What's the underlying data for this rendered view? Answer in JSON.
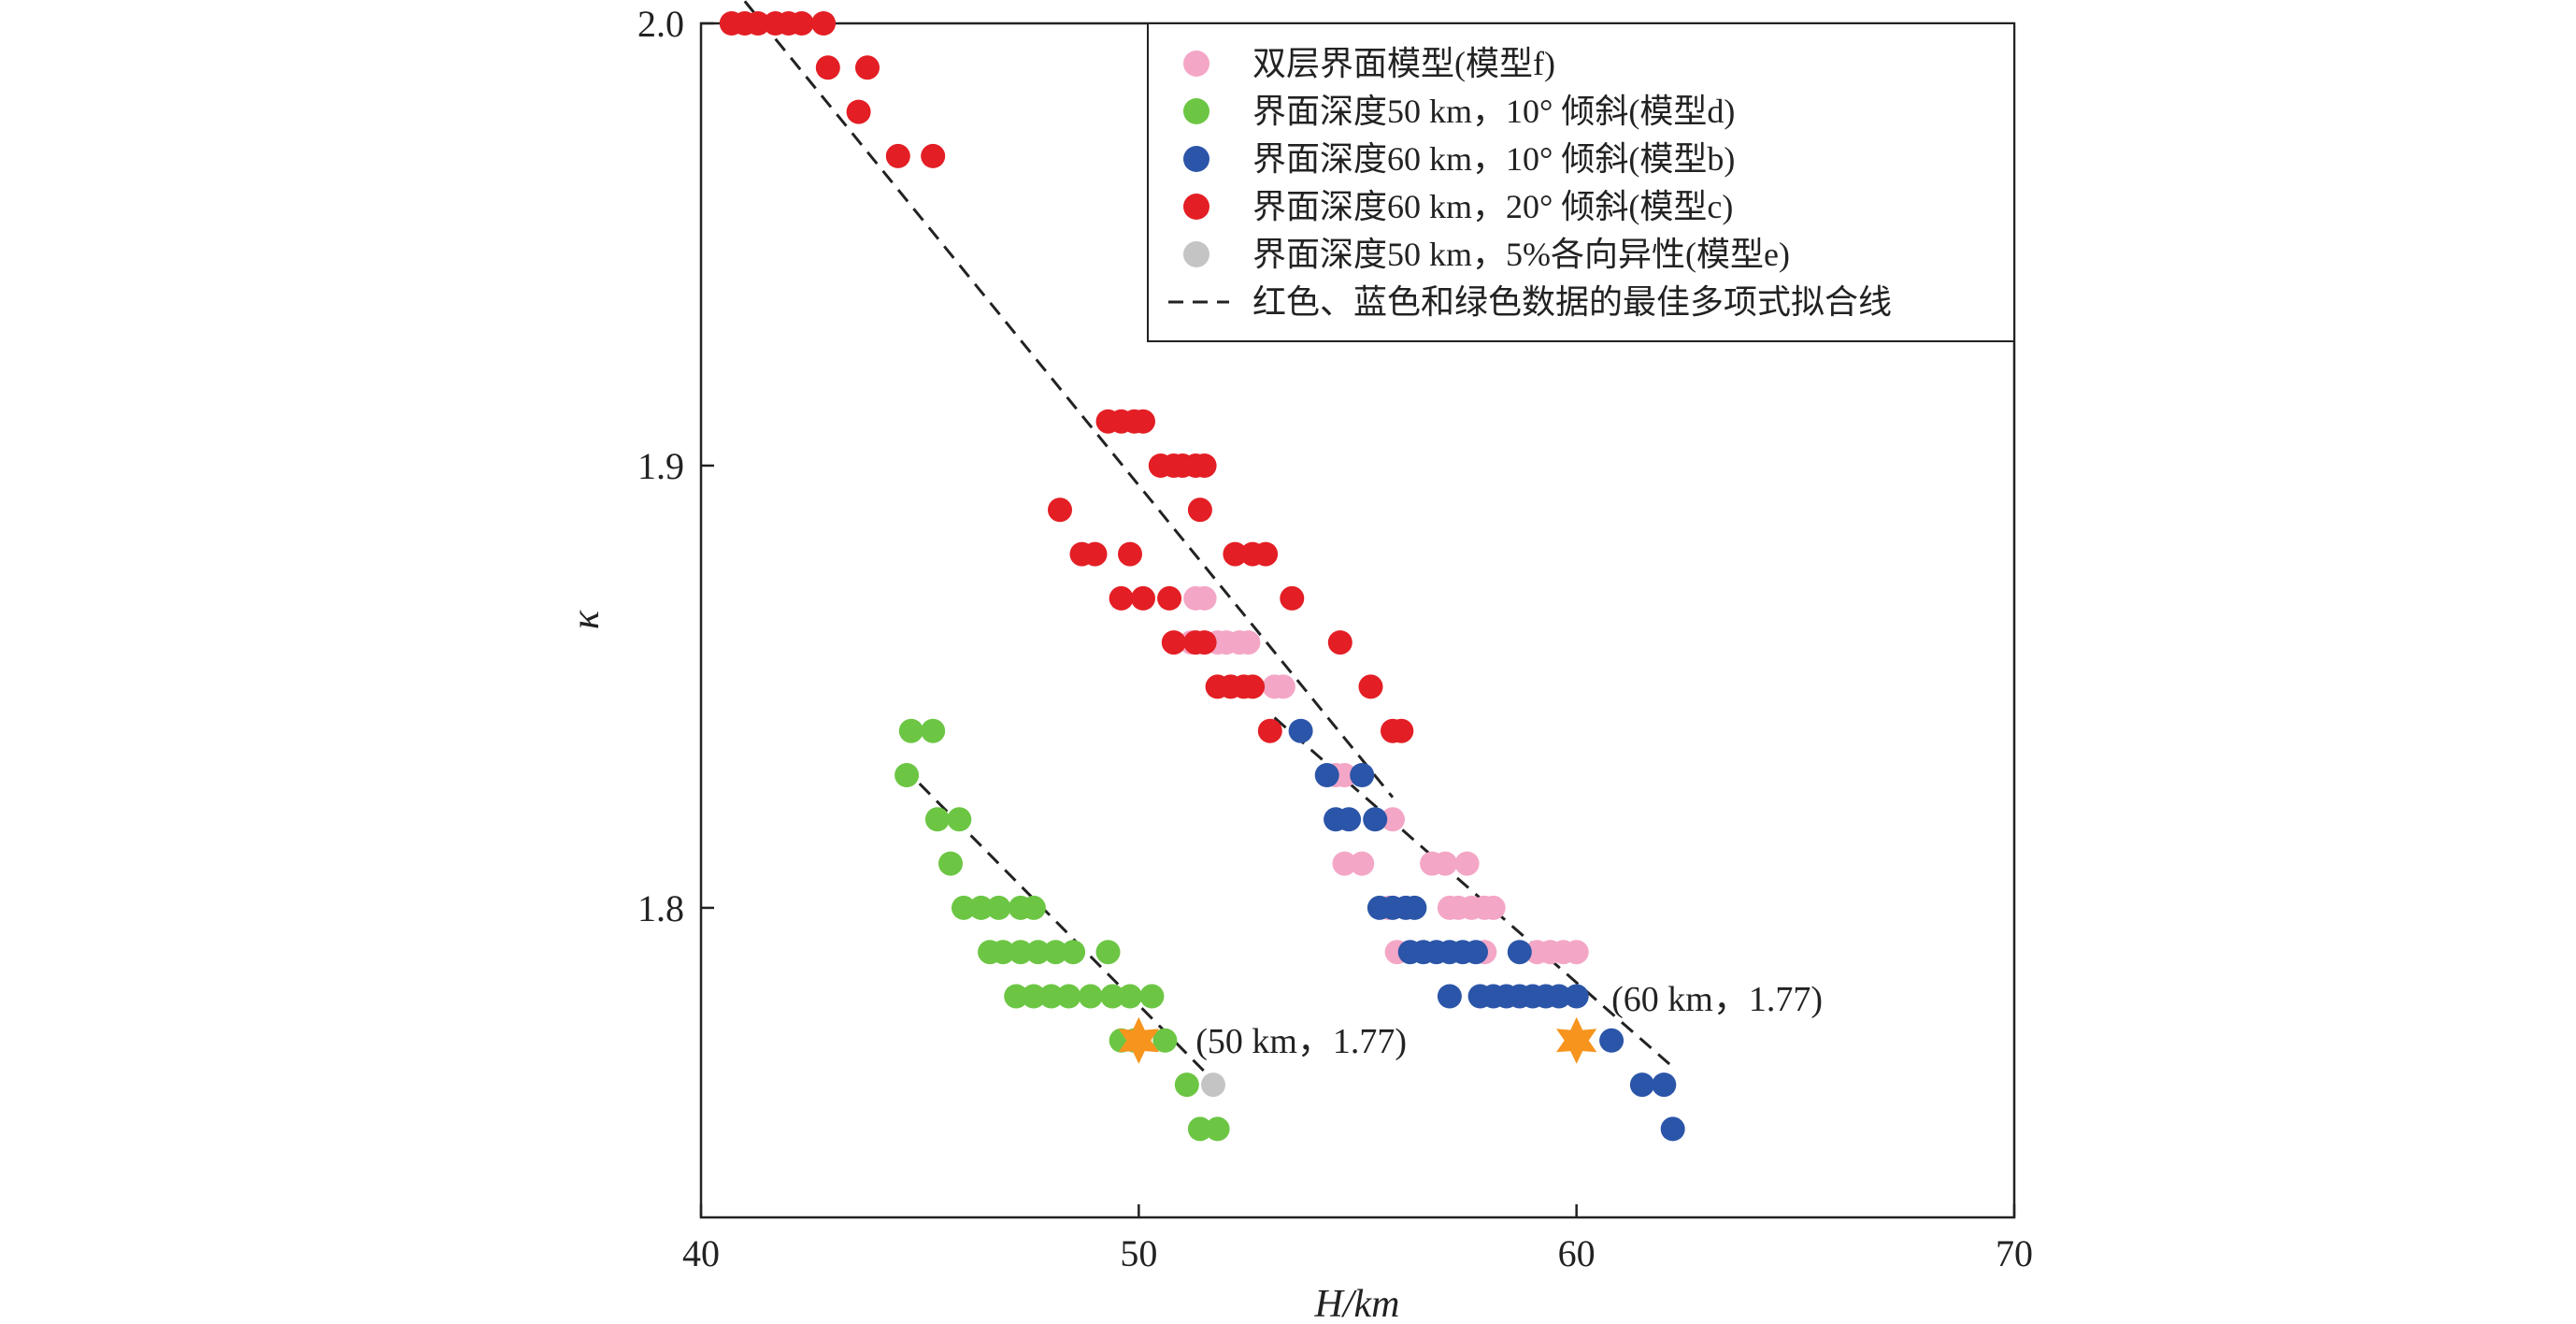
{
  "chart_data": {
    "type": "scatter",
    "xlabel": "H/km",
    "ylabel": "κ",
    "xlim": [
      40,
      70
    ],
    "ylim": [
      1.73,
      2.0
    ],
    "x_ticks": [
      "40",
      "50",
      "60",
      "70"
    ],
    "y_ticks": [
      "1.8",
      "1.9",
      "2.0"
    ],
    "legend_position": "top-right",
    "series": [
      {
        "name": "双层界面模型(模型f)",
        "color": "#f4a6c6",
        "points": [
          [
            51.3,
            1.87
          ],
          [
            51.5,
            1.87
          ],
          [
            51.2,
            1.86
          ],
          [
            51.8,
            1.86
          ],
          [
            52.0,
            1.86
          ],
          [
            52.3,
            1.86
          ],
          [
            52.5,
            1.86
          ],
          [
            53.1,
            1.85
          ],
          [
            53.3,
            1.85
          ],
          [
            54.5,
            1.83
          ],
          [
            54.7,
            1.83
          ],
          [
            55.8,
            1.82
          ],
          [
            54.7,
            1.81
          ],
          [
            55.1,
            1.81
          ],
          [
            56.7,
            1.81
          ],
          [
            57.0,
            1.81
          ],
          [
            57.5,
            1.81
          ],
          [
            55.7,
            1.8
          ],
          [
            57.1,
            1.8
          ],
          [
            57.3,
            1.8
          ],
          [
            57.6,
            1.8
          ],
          [
            57.9,
            1.8
          ],
          [
            58.1,
            1.8
          ],
          [
            55.9,
            1.79
          ],
          [
            57.9,
            1.79
          ],
          [
            59.1,
            1.79
          ],
          [
            59.4,
            1.79
          ],
          [
            59.7,
            1.79
          ],
          [
            60.0,
            1.79
          ]
        ]
      },
      {
        "name": "界面深度50 km，10° 倾斜(模型d)",
        "color": "#6cc644",
        "points": [
          [
            44.8,
            1.84
          ],
          [
            45.3,
            1.84
          ],
          [
            44.7,
            1.83
          ],
          [
            45.4,
            1.82
          ],
          [
            45.9,
            1.82
          ],
          [
            45.7,
            1.81
          ],
          [
            46.0,
            1.8
          ],
          [
            46.4,
            1.8
          ],
          [
            46.8,
            1.8
          ],
          [
            47.3,
            1.8
          ],
          [
            47.6,
            1.8
          ],
          [
            46.6,
            1.79
          ],
          [
            46.9,
            1.79
          ],
          [
            47.3,
            1.79
          ],
          [
            47.7,
            1.79
          ],
          [
            48.1,
            1.79
          ],
          [
            48.5,
            1.79
          ],
          [
            49.3,
            1.79
          ],
          [
            47.2,
            1.78
          ],
          [
            47.6,
            1.78
          ],
          [
            48.0,
            1.78
          ],
          [
            48.4,
            1.78
          ],
          [
            48.9,
            1.78
          ],
          [
            49.4,
            1.78
          ],
          [
            49.8,
            1.78
          ],
          [
            50.3,
            1.78
          ],
          [
            49.6,
            1.77
          ],
          [
            49.9,
            1.77
          ],
          [
            50.6,
            1.77
          ],
          [
            51.1,
            1.76
          ],
          [
            51.4,
            1.75
          ],
          [
            51.8,
            1.75
          ]
        ]
      },
      {
        "name": "界面深度60 km，10° 倾斜(模型b)",
        "color": "#2b55a8",
        "points": [
          [
            53.7,
            1.84
          ],
          [
            54.3,
            1.83
          ],
          [
            55.1,
            1.83
          ],
          [
            54.5,
            1.82
          ],
          [
            54.8,
            1.82
          ],
          [
            55.4,
            1.82
          ],
          [
            55.5,
            1.8
          ],
          [
            55.8,
            1.8
          ],
          [
            56.1,
            1.8
          ],
          [
            56.3,
            1.8
          ],
          [
            56.2,
            1.79
          ],
          [
            56.5,
            1.79
          ],
          [
            56.8,
            1.79
          ],
          [
            57.1,
            1.79
          ],
          [
            57.4,
            1.79
          ],
          [
            57.7,
            1.79
          ],
          [
            58.7,
            1.79
          ],
          [
            57.1,
            1.78
          ],
          [
            57.8,
            1.78
          ],
          [
            58.1,
            1.78
          ],
          [
            58.4,
            1.78
          ],
          [
            58.7,
            1.78
          ],
          [
            59.0,
            1.78
          ],
          [
            59.3,
            1.78
          ],
          [
            59.6,
            1.78
          ],
          [
            60.0,
            1.78
          ],
          [
            60.8,
            1.77
          ],
          [
            61.5,
            1.76
          ],
          [
            62.0,
            1.76
          ],
          [
            62.2,
            1.75
          ]
        ]
      },
      {
        "name": "界面深度60 km，20° 倾斜(模型c)",
        "color": "#e31e24",
        "points": [
          [
            40.7,
            2.0
          ],
          [
            41.0,
            2.0
          ],
          [
            41.3,
            2.0
          ],
          [
            41.7,
            2.0
          ],
          [
            42.0,
            2.0
          ],
          [
            42.3,
            2.0
          ],
          [
            42.8,
            2.0
          ],
          [
            42.9,
            1.99
          ],
          [
            43.8,
            1.99
          ],
          [
            43.6,
            1.98
          ],
          [
            44.5,
            1.97
          ],
          [
            45.3,
            1.97
          ],
          [
            49.3,
            1.91
          ],
          [
            49.6,
            1.91
          ],
          [
            49.9,
            1.91
          ],
          [
            50.1,
            1.91
          ],
          [
            50.5,
            1.9
          ],
          [
            50.8,
            1.9
          ],
          [
            51.0,
            1.9
          ],
          [
            51.3,
            1.9
          ],
          [
            51.5,
            1.9
          ],
          [
            48.2,
            1.89
          ],
          [
            51.4,
            1.89
          ],
          [
            48.7,
            1.88
          ],
          [
            49.0,
            1.88
          ],
          [
            49.8,
            1.88
          ],
          [
            52.2,
            1.88
          ],
          [
            52.6,
            1.88
          ],
          [
            52.9,
            1.88
          ],
          [
            49.6,
            1.87
          ],
          [
            50.1,
            1.87
          ],
          [
            50.7,
            1.87
          ],
          [
            53.5,
            1.87
          ],
          [
            50.8,
            1.86
          ],
          [
            51.3,
            1.86
          ],
          [
            51.5,
            1.86
          ],
          [
            54.6,
            1.86
          ],
          [
            51.8,
            1.85
          ],
          [
            52.1,
            1.85
          ],
          [
            52.4,
            1.85
          ],
          [
            52.6,
            1.85
          ],
          [
            55.3,
            1.85
          ],
          [
            53.0,
            1.84
          ],
          [
            55.8,
            1.84
          ],
          [
            56.0,
            1.84
          ]
        ]
      },
      {
        "name": "界面深度50 km，5%各向异性(模型e)",
        "color": "#c4c4c4",
        "points": [
          [
            51.7,
            1.76
          ]
        ]
      }
    ],
    "fit_lines": {
      "name": "红色、蓝色和绿色数据的最佳多项式拟合线",
      "color": "#222222",
      "segments": [
        [
          [
            41.0,
            2.005
          ],
          [
            55.8,
            1.825
          ]
        ],
        [
          [
            53.1,
            1.843
          ],
          [
            62.2,
            1.764
          ]
        ],
        [
          [
            44.6,
            1.832
          ],
          [
            51.8,
            1.76
          ]
        ]
      ]
    },
    "stars": {
      "color": "#f7941d",
      "points": [
        [
          50,
          1.77
        ],
        [
          60,
          1.77
        ]
      ]
    },
    "annotations": [
      {
        "text": "(50 km，1.77)",
        "x": 51.3,
        "y": 1.77
      },
      {
        "text": "(60 km，1.77)",
        "x": 60.8,
        "y": 1.7795
      }
    ]
  }
}
